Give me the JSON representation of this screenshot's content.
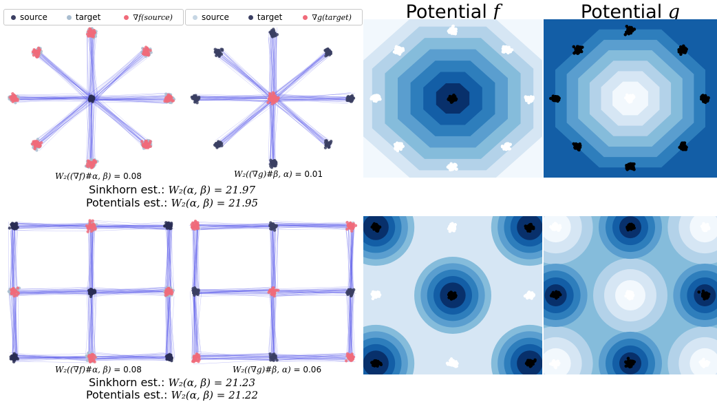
{
  "colors": {
    "source": "#3b3f63",
    "source_light": "#a9bdd0",
    "target_dark": "#2a2e55",
    "grad": "#f06b7a",
    "line": "#4a4ae8",
    "contour": [
      "#f2f8fd",
      "#d6e6f4",
      "#b3d2e9",
      "#85bcdb",
      "#5a9ecf",
      "#2e7ebc",
      "#135ea6",
      "#08306b"
    ]
  },
  "legends": [
    {
      "items": [
        {
          "label": "source",
          "dot": "source",
          "kind": "text",
          "icon": "dot-icon"
        },
        {
          "label": "target",
          "dot": "source_light",
          "kind": "text",
          "icon": "dot-icon"
        },
        {
          "label": "∇f(source)",
          "dot": "grad",
          "kind": "math",
          "icon": "dot-icon"
        }
      ]
    },
    {
      "items": [
        {
          "label": "source",
          "dot": "source_light",
          "kind": "text",
          "icon": "dot-icon"
        },
        {
          "label": "target",
          "dot": "source",
          "kind": "text",
          "icon": "dot-icon"
        },
        {
          "label": "∇g(target)",
          "dot": "grad",
          "kind": "math",
          "icon": "dot-icon"
        }
      ]
    }
  ],
  "potential_titles": [
    {
      "text": "Potential ",
      "math": "f"
    },
    {
      "text": "Potential ",
      "math": "g"
    }
  ],
  "rows": [
    {
      "metric_left": {
        "math": "W₂((∇f)#α, β) =",
        "value": "0.08"
      },
      "metric_right": {
        "math": "W₂((∇g)#β, α) =",
        "value": "0.01"
      },
      "sinkhorn": {
        "label": "Sinkhorn est.: ",
        "math": "W₂(α, β) = 21.97"
      },
      "potentials": {
        "label": "Potentials est.: ",
        "math": "W₂(α, β) = 21.95"
      }
    },
    {
      "metric_left": {
        "math": "W₂((∇f)#α, β) =",
        "value": "0.08"
      },
      "metric_right": {
        "math": "W₂((∇g)#β, α) =",
        "value": "0.06"
      },
      "sinkhorn": {
        "label": "Sinkhorn est.: ",
        "math": "W₂(α, β) = 21.23"
      },
      "potentials": {
        "label": "Potentials est.: ",
        "math": "W₂(α, β) = 21.22"
      }
    }
  ],
  "chart_data": [
    {
      "type": "scatter",
      "panel": "star-f",
      "series": [
        {
          "name": "source",
          "role": "target_center_cluster",
          "clusters": [
            [
              0,
              0
            ]
          ]
        },
        {
          "name": "target",
          "role": "outer_clusters",
          "clusters": [
            [
              0,
              1
            ],
            [
              0.7071,
              0.7071
            ],
            [
              1,
              0
            ],
            [
              0.7071,
              -0.7071
            ],
            [
              0,
              -1
            ],
            [
              -0.7071,
              -0.7071
            ],
            [
              -1,
              0
            ],
            [
              -0.7071,
              0.7071
            ]
          ]
        },
        {
          "name": "∇f(source)",
          "role": "mapped",
          "clusters": [
            [
              0,
              1
            ],
            [
              0.7071,
              0.7071
            ],
            [
              1,
              0
            ],
            [
              0.7071,
              -0.7071
            ],
            [
              0,
              -1
            ],
            [
              -0.7071,
              -0.7071
            ],
            [
              -1,
              0
            ],
            [
              -0.7071,
              0.7071
            ]
          ]
        }
      ]
    },
    {
      "type": "scatter",
      "panel": "star-g",
      "series": [
        {
          "name": "source",
          "clusters": [
            [
              0,
              0
            ]
          ]
        },
        {
          "name": "target",
          "clusters": [
            [
              0,
              1
            ],
            [
              0.7071,
              0.7071
            ],
            [
              1,
              0
            ],
            [
              0.7071,
              -0.7071
            ],
            [
              0,
              -1
            ],
            [
              -0.7071,
              -0.7071
            ],
            [
              -1,
              0
            ],
            [
              -0.7071,
              0.7071
            ]
          ]
        },
        {
          "name": "∇g(target)",
          "clusters": [
            [
              0,
              0
            ]
          ]
        }
      ]
    },
    {
      "type": "heatmap",
      "panel": "potential-f-star",
      "white_clusters": [
        [
          0,
          1
        ],
        [
          0.7071,
          0.7071
        ],
        [
          1,
          0
        ],
        [
          0.7071,
          -0.7071
        ],
        [
          0,
          -1
        ],
        [
          -0.7071,
          -0.7071
        ],
        [
          -1,
          0
        ],
        [
          -0.7071,
          0.7071
        ]
      ],
      "black_clusters": [
        [
          0,
          0
        ]
      ]
    },
    {
      "type": "heatmap",
      "panel": "potential-g-star",
      "white_clusters": [
        [
          0,
          0
        ]
      ],
      "black_clusters": [
        [
          0,
          1
        ],
        [
          0.7071,
          0.7071
        ],
        [
          1,
          0
        ],
        [
          0.7071,
          -0.7071
        ],
        [
          0,
          -1
        ],
        [
          -0.7071,
          -0.7071
        ],
        [
          -1,
          0
        ],
        [
          -0.7071,
          0.7071
        ]
      ]
    },
    {
      "type": "scatter",
      "panel": "grid-f",
      "series": [
        {
          "name": "source",
          "clusters": [
            [
              -1,
              1
            ],
            [
              1,
              1
            ],
            [
              0,
              0
            ],
            [
              -1,
              -1
            ],
            [
              1,
              -1
            ]
          ]
        },
        {
          "name": "target",
          "clusters": [
            [
              0,
              1
            ],
            [
              -1,
              0
            ],
            [
              1,
              0
            ],
            [
              0,
              -1
            ]
          ]
        },
        {
          "name": "∇f(source)",
          "clusters": [
            [
              0,
              1
            ],
            [
              -1,
              0
            ],
            [
              1,
              0
            ],
            [
              0,
              -1
            ]
          ]
        }
      ]
    },
    {
      "type": "scatter",
      "panel": "grid-g",
      "series": [
        {
          "name": "source",
          "clusters": [
            [
              -1,
              1
            ],
            [
              1,
              1
            ],
            [
              0,
              0
            ],
            [
              -1,
              -1
            ],
            [
              1,
              -1
            ]
          ]
        },
        {
          "name": "target",
          "clusters": [
            [
              0,
              1
            ],
            [
              -1,
              0
            ],
            [
              1,
              0
            ],
            [
              0,
              -1
            ]
          ]
        },
        {
          "name": "∇g(target)",
          "clusters": [
            [
              -1,
              1
            ],
            [
              1,
              1
            ],
            [
              0,
              0
            ],
            [
              -1,
              -1
            ],
            [
              1,
              -1
            ]
          ]
        }
      ]
    },
    {
      "type": "heatmap",
      "panel": "potential-f-grid",
      "white_clusters": [
        [
          0,
          1
        ],
        [
          -1,
          0
        ],
        [
          1,
          0
        ],
        [
          0,
          -1
        ]
      ],
      "black_clusters": [
        [
          -1,
          1
        ],
        [
          1,
          1
        ],
        [
          0,
          0
        ],
        [
          -1,
          -1
        ],
        [
          1,
          -1
        ]
      ]
    },
    {
      "type": "heatmap",
      "panel": "potential-g-grid",
      "white_clusters": [
        [
          -1,
          1
        ],
        [
          1,
          1
        ],
        [
          0,
          0
        ],
        [
          -1,
          -1
        ],
        [
          1,
          -1
        ]
      ],
      "black_clusters": [
        [
          0,
          1
        ],
        [
          -1,
          0
        ],
        [
          1,
          0
        ],
        [
          0,
          -1
        ]
      ]
    }
  ]
}
